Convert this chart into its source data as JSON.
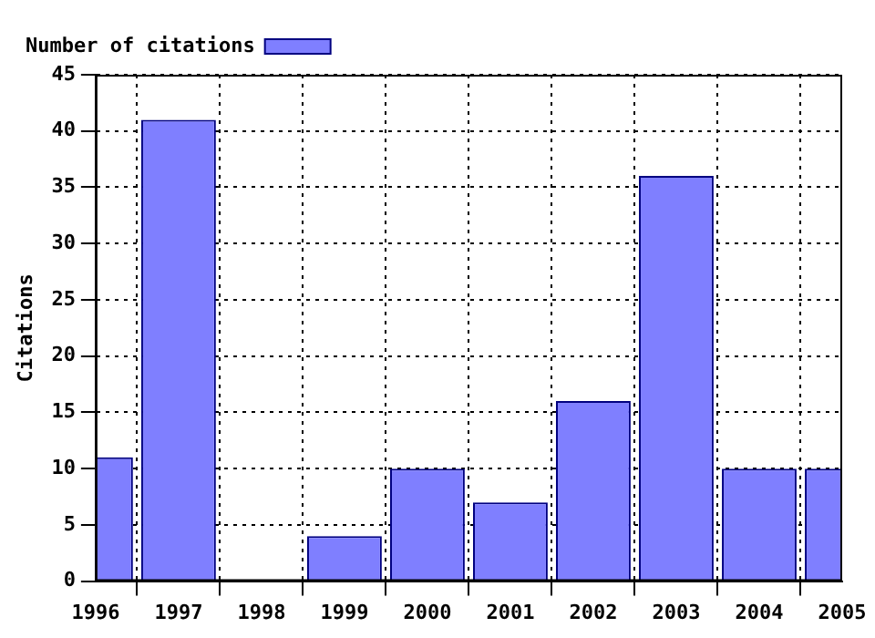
{
  "chart_data": {
    "type": "bar",
    "ylabel": "Citations",
    "x": [
      1996,
      1997,
      1999,
      2000,
      2001,
      2002,
      2003,
      2004,
      2005
    ],
    "series": [
      {
        "name": "Number of citations",
        "color": "#7f7fff",
        "values": [
          11,
          41,
          4,
          10,
          7,
          16,
          36,
          10,
          10
        ]
      }
    ],
    "xlim": [
      1996,
      2005
    ],
    "xticks": [
      1996,
      1997,
      1998,
      1999,
      2000,
      2001,
      2002,
      2003,
      2004,
      2005
    ],
    "ylim": [
      0,
      45
    ],
    "yticks": [
      0,
      5,
      10,
      15,
      20,
      25,
      30,
      35,
      40,
      45
    ],
    "grid": true,
    "legend": "top left"
  }
}
